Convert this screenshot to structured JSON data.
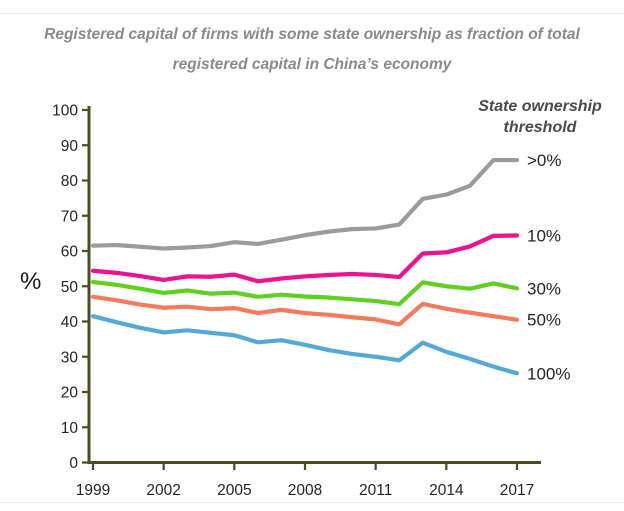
{
  "page": {
    "title_line1": "Registered capital of firms with some state ownership as fraction of total",
    "title_line2": "registered capital in China’s economy"
  },
  "chart_data": {
    "type": "line",
    "title": "Registered capital of firms with some state ownership as fraction of total registered capital in China’s economy",
    "xlabel": "",
    "ylabel": "%",
    "ylim": [
      0,
      100
    ],
    "ytick_step": 10,
    "xlim": [
      1999,
      2017
    ],
    "xticks": [
      1999,
      2002,
      2005,
      2008,
      2011,
      2014,
      2017
    ],
    "grid": false,
    "legend_title": "State ownership threshold",
    "legend_position": "right",
    "axis_color": "#4e4b22",
    "label_color": "#2e2e2e",
    "x": [
      1999,
      2000,
      2001,
      2002,
      2003,
      2004,
      2005,
      2006,
      2007,
      2008,
      2009,
      2010,
      2011,
      2012,
      2013,
      2014,
      2015,
      2016,
      2017
    ],
    "series": [
      {
        "name": ">0%",
        "color": "#9b9b9b",
        "values": [
          61.5,
          61.7,
          61.2,
          60.7,
          61.0,
          61.4,
          62.5,
          62.0,
          63.2,
          64.5,
          65.5,
          66.2,
          66.4,
          67.5,
          74.8,
          76.0,
          78.5,
          85.8,
          85.8
        ]
      },
      {
        "name": "10%",
        "color": "#ee1190",
        "values": [
          54.4,
          53.8,
          52.9,
          51.8,
          52.8,
          52.7,
          53.3,
          51.4,
          52.2,
          52.8,
          53.2,
          53.5,
          53.2,
          52.6,
          59.3,
          59.6,
          61.3,
          64.3,
          64.4
        ]
      },
      {
        "name": "30%",
        "color": "#5fd01f",
        "values": [
          51.2,
          50.4,
          49.3,
          48.1,
          48.8,
          47.9,
          48.2,
          47.0,
          47.6,
          47.1,
          46.8,
          46.3,
          45.8,
          44.9,
          51.1,
          50.0,
          49.3,
          50.8,
          49.4
        ]
      },
      {
        "name": "50%",
        "color": "#f47a5b",
        "values": [
          47.0,
          46.0,
          44.8,
          43.9,
          44.2,
          43.5,
          43.8,
          42.4,
          43.3,
          42.4,
          41.9,
          41.2,
          40.6,
          39.2,
          45.0,
          43.6,
          42.5,
          41.5,
          40.5
        ]
      },
      {
        "name": "100%",
        "color": "#52a9d8",
        "values": [
          41.5,
          39.8,
          38.2,
          36.9,
          37.5,
          36.8,
          36.1,
          34.1,
          34.7,
          33.4,
          31.9,
          30.8,
          30.0,
          29.0,
          34.0,
          31.4,
          29.4,
          27.2,
          25.3
        ]
      }
    ]
  }
}
